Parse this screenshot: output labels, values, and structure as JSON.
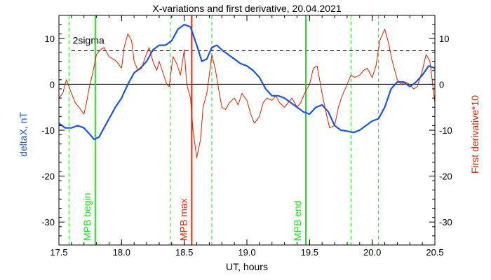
{
  "chart_data": {
    "type": "line",
    "title": "X-variations and first derivative, 20.04.2021",
    "xlabel": "UT, hours",
    "ylabel_left": "deltaX, nT",
    "ylabel_right": "First derivative*10",
    "xlim": [
      17.5,
      20.5
    ],
    "ylim": [
      -35,
      15
    ],
    "x_ticks": [
      17.5,
      18.0,
      18.5,
      19.0,
      19.5,
      20.0,
      20.5
    ],
    "x_tick_labels": [
      "17.5",
      "18.0",
      "18.5",
      "19.0",
      "19.5",
      "20.0",
      "20.5"
    ],
    "y_ticks": [
      10,
      0,
      -10,
      -20,
      -30
    ],
    "y_tick_labels_left": [
      "10",
      "0",
      "-10",
      "-20",
      "-30"
    ],
    "y_tick_labels_right": [
      "10",
      "0",
      "-10",
      "-20",
      "-30"
    ],
    "colors": {
      "deltaX": "#1a55d6",
      "derivative": "#cc2200",
      "mpb_solid": "#22dd22",
      "mpb_dashed": "#22dd22",
      "mpb_max": "#ee2200",
      "axis": "#000000",
      "left_label": "#1a55d6",
      "right_label": "#cc2200"
    },
    "series": [
      {
        "key": "deltaX",
        "x": [
          17.5,
          17.55,
          17.6,
          17.65,
          17.7,
          17.75,
          17.78,
          17.82,
          17.86,
          17.9,
          17.95,
          18.0,
          18.05,
          18.1,
          18.15,
          18.2,
          18.25,
          18.3,
          18.35,
          18.4,
          18.45,
          18.5,
          18.55,
          18.6,
          18.64,
          18.68,
          18.72,
          18.76,
          18.8,
          18.85,
          18.9,
          18.95,
          19.0,
          19.05,
          19.1,
          19.15,
          19.2,
          19.25,
          19.3,
          19.35,
          19.4,
          19.45,
          19.5,
          19.55,
          19.6,
          19.65,
          19.7,
          19.75,
          19.8,
          19.85,
          19.9,
          19.95,
          20.0,
          20.05,
          20.1,
          20.15,
          20.2,
          20.25,
          20.3,
          20.35,
          20.4,
          20.45,
          20.5
        ],
        "y": [
          -8.5,
          -9.5,
          -9.5,
          -9.0,
          -9.5,
          -11.0,
          -12.0,
          -11.5,
          -9.5,
          -7.5,
          -5.0,
          -3.0,
          0.0,
          2.5,
          3.5,
          5.0,
          7.5,
          8.5,
          8.5,
          9.5,
          12.0,
          13.0,
          12.5,
          8.5,
          5.0,
          5.5,
          8.0,
          8.5,
          7.5,
          6.5,
          5.5,
          4.5,
          4.0,
          3.0,
          1.5,
          -1.0,
          -2.5,
          -2.5,
          -3.0,
          -4.0,
          -5.0,
          -6.0,
          -6.5,
          -5.0,
          -4.5,
          -6.0,
          -9.0,
          -10.0,
          -10.2,
          -10.5,
          -10.0,
          -9.0,
          -8.0,
          -7.5,
          -5.0,
          -1.0,
          0.5,
          0.5,
          -0.5,
          0.5,
          2.0,
          4.0,
          3.5
        ]
      },
      {
        "key": "derivative",
        "x": [
          17.5,
          17.53,
          17.56,
          17.6,
          17.63,
          17.66,
          17.7,
          17.72,
          17.74,
          17.77,
          17.8,
          17.83,
          17.86,
          17.9,
          17.93,
          17.96,
          18.0,
          18.02,
          18.05,
          18.08,
          18.1,
          18.13,
          18.16,
          18.19,
          18.22,
          18.25,
          18.28,
          18.3,
          18.33,
          18.36,
          18.38,
          18.41,
          18.44,
          18.47,
          18.5,
          18.52,
          18.55,
          18.57,
          18.6,
          18.63,
          18.65,
          18.68,
          18.7,
          18.72,
          18.75,
          18.78,
          18.8,
          18.83,
          18.86,
          18.9,
          18.93,
          18.96,
          19.0,
          19.03,
          19.06,
          19.1,
          19.13,
          19.16,
          19.2,
          19.23,
          19.26,
          19.3,
          19.33,
          19.36,
          19.4,
          19.43,
          19.46,
          19.5,
          19.53,
          19.56,
          19.6,
          19.63,
          19.66,
          19.7,
          19.73,
          19.76,
          19.8,
          19.83,
          19.86,
          19.9,
          19.93,
          19.96,
          20.0,
          20.03,
          20.06,
          20.1,
          20.13,
          20.16,
          20.2,
          20.23,
          20.26,
          20.3,
          20.33,
          20.36,
          20.4,
          20.43,
          20.46,
          20.5
        ],
        "y": [
          -3.0,
          -2.0,
          1.0,
          -2.0,
          -4.0,
          -5.0,
          -6.5,
          -4.0,
          -1.0,
          2.5,
          6.5,
          7.5,
          8.0,
          6.0,
          5.5,
          5.0,
          3.5,
          8.0,
          11.0,
          9.5,
          5.0,
          3.0,
          3.5,
          6.0,
          8.0,
          5.0,
          3.0,
          5.0,
          2.5,
          0.0,
          -0.5,
          6.0,
          4.5,
          2.0,
          7.5,
          0.0,
          -3.0,
          -10.0,
          -16.0,
          -12.0,
          -5.0,
          -2.0,
          2.0,
          6.5,
          3.0,
          -2.0,
          -5.0,
          -5.5,
          -4.0,
          -3.0,
          -4.5,
          -2.0,
          -3.5,
          -6.5,
          -8.5,
          -7.0,
          -4.0,
          -3.0,
          -3.5,
          -2.5,
          -4.0,
          -5.0,
          -4.0,
          -3.0,
          -5.0,
          -4.0,
          -2.0,
          0.0,
          3.5,
          4.0,
          -2.0,
          -6.0,
          -9.5,
          -9.0,
          -5.0,
          -2.5,
          0.0,
          2.0,
          1.5,
          2.0,
          3.0,
          3.5,
          1.5,
          4.0,
          9.5,
          12.0,
          9.0,
          5.0,
          1.0,
          0.0,
          0.5,
          0.0,
          -1.0,
          -0.5,
          3.0,
          6.5,
          5.0,
          -4.0
        ]
      }
    ],
    "threshold": {
      "label": "2sigma",
      "value": 7.3,
      "style": "dashed"
    },
    "zero_line": 0,
    "vertical_markers": [
      {
        "x": 17.58,
        "style": "dashed",
        "color": "green"
      },
      {
        "x": 17.79,
        "style": "solid",
        "color": "green",
        "label": "MPB begin"
      },
      {
        "x": 18.39,
        "style": "dashed",
        "color": "green"
      },
      {
        "x": 18.56,
        "style": "solid",
        "color": "red",
        "label": "MPB max"
      },
      {
        "x": 18.72,
        "style": "dashed",
        "color": "green"
      },
      {
        "x": 19.47,
        "style": "solid",
        "color": "green",
        "label": "MPB end"
      },
      {
        "x": 19.83,
        "style": "dashed",
        "color": "green"
      },
      {
        "x": 20.05,
        "style": "dashed",
        "color": "green"
      }
    ],
    "grid": false,
    "legend": "none"
  }
}
